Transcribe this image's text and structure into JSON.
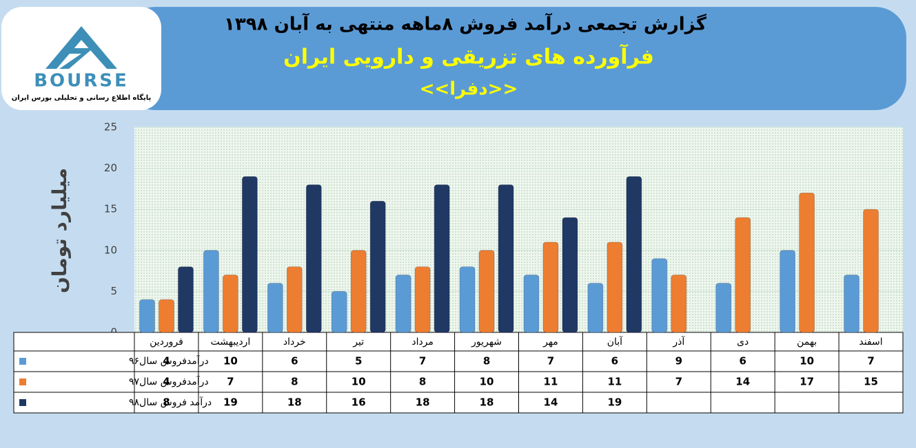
{
  "logo": {
    "text": "BOURSE",
    "subtitle": "پایگاه اطلاع رسانی و تحلیلی بورس ایران"
  },
  "chart_data": {
    "type": "bar",
    "title": "گزارش تجمعی درآمد فروش ۸ماهه منتهی به آبان ۱۳۹۸",
    "subtitle": "فرآورده های تزریقی  و دارویی ایران",
    "subtitle2": "<<دفرا>>",
    "y_label": "میلیارد تومان",
    "categories": [
      "فروردین",
      "اردیبهشت",
      "خرداد",
      "تیر",
      "مرداد",
      "شهریور",
      "مهر",
      "آبان",
      "آذر",
      "دی",
      "بهمن",
      "اسفند"
    ],
    "series": [
      {
        "name": "درآمدفروش سال۹۶",
        "color": "#5b9bd5",
        "values": [
          4,
          10,
          6,
          5,
          7,
          8,
          7,
          6,
          9,
          6,
          10,
          7
        ]
      },
      {
        "name": "درآمدفروش سال۹۷",
        "color": "#ed7d31",
        "values": [
          4,
          7,
          8,
          10,
          8,
          10,
          11,
          11,
          7,
          14,
          17,
          15
        ]
      },
      {
        "name": "درآمد فروش سال۹۸",
        "color": "#1f3864",
        "values": [
          8,
          19,
          18,
          16,
          18,
          18,
          14,
          19,
          null,
          null,
          null,
          null
        ]
      }
    ],
    "ylim": [
      0,
      25
    ],
    "yticks": [
      0,
      5,
      10,
      15,
      20,
      25
    ],
    "grid": true
  }
}
